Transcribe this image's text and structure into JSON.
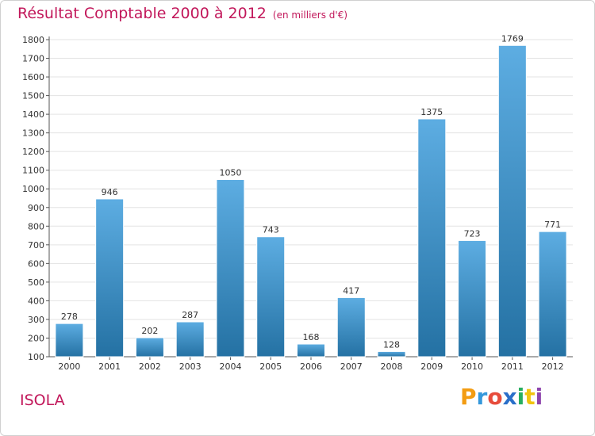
{
  "title": "Résultat Comptable 2000 à 2012",
  "unit": "(en milliers d'€)",
  "town": "ISOLA",
  "brand": {
    "letters": [
      "P",
      "r",
      "o",
      "x",
      "i",
      "t",
      "i"
    ],
    "colors": [
      "#f39c12",
      "#3498db",
      "#e74c3c",
      "#2a6fc9",
      "#27ae60",
      "#f1c40f",
      "#8e44ad"
    ]
  },
  "colors": {
    "title": "#c2185b",
    "bar_top": "#5dade2",
    "bar_bottom": "#2471a3",
    "grid": "#e3e3e3",
    "axis": "#555555",
    "text": "#333333"
  },
  "chart_data": {
    "type": "bar",
    "title": "Résultat Comptable 2000 à 2012",
    "xlabel": "",
    "ylabel": "",
    "categories": [
      "2000",
      "2001",
      "2002",
      "2003",
      "2004",
      "2005",
      "2006",
      "2007",
      "2008",
      "2009",
      "2010",
      "2011",
      "2012"
    ],
    "values": [
      278,
      946,
      202,
      287,
      1050,
      743,
      168,
      417,
      128,
      1375,
      723,
      1769,
      771
    ],
    "ylim": [
      100,
      1800
    ],
    "yticks": [
      100,
      200,
      300,
      400,
      500,
      600,
      700,
      800,
      900,
      1000,
      1100,
      1200,
      1300,
      1400,
      1500,
      1600,
      1700,
      1800
    ],
    "grid": true,
    "legend": "none"
  }
}
